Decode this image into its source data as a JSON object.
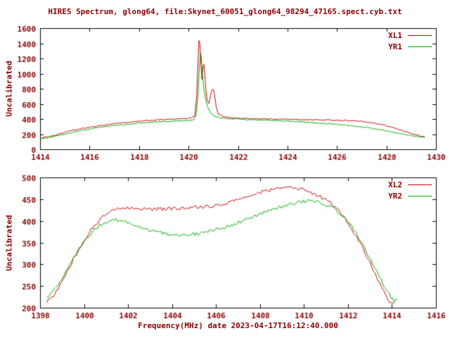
{
  "chart_data": {
    "type": "line",
    "title": "HIRES Spectrum, glong64, file:Skynet_60051_glong64_98294_47165.spect.cyb.txt",
    "xlabel": "Frequency(MHz) date 2023-04-17T16:12:40.000",
    "grid": false,
    "legend_position": "top-right",
    "background": "#ffffff",
    "axis_color": "#000000",
    "text_color": "#8b0000",
    "plots": [
      {
        "ylabel": "Uncalibrated",
        "xlim": [
          1414,
          1430
        ],
        "xtick_step": 2,
        "ylim": [
          0,
          1600
        ],
        "ytick_step": 200,
        "series": [
          {
            "name": "XL1",
            "color": "#cc0000",
            "noise": 6,
            "points": [
              [
                1414.05,
                150
              ],
              [
                1414.3,
                165
              ],
              [
                1414.6,
                185
              ],
              [
                1415.0,
                225
              ],
              [
                1415.4,
                255
              ],
              [
                1415.8,
                280
              ],
              [
                1416.2,
                300
              ],
              [
                1416.6,
                320
              ],
              [
                1417.0,
                340
              ],
              [
                1417.4,
                352
              ],
              [
                1417.8,
                362
              ],
              [
                1418.2,
                375
              ],
              [
                1418.6,
                385
              ],
              [
                1419.0,
                393
              ],
              [
                1419.4,
                398
              ],
              [
                1419.8,
                403
              ],
              [
                1420.1,
                412
              ],
              [
                1420.25,
                440
              ],
              [
                1420.33,
                700
              ],
              [
                1420.38,
                1150
              ],
              [
                1420.42,
                1440
              ],
              [
                1420.46,
                1400
              ],
              [
                1420.5,
                1120
              ],
              [
                1420.54,
                920
              ],
              [
                1420.58,
                1080
              ],
              [
                1420.62,
                1120
              ],
              [
                1420.66,
                980
              ],
              [
                1420.7,
                800
              ],
              [
                1420.76,
                640
              ],
              [
                1420.82,
                600
              ],
              [
                1420.88,
                700
              ],
              [
                1420.94,
                780
              ],
              [
                1421.0,
                790
              ],
              [
                1421.06,
                700
              ],
              [
                1421.12,
                560
              ],
              [
                1421.2,
                470
              ],
              [
                1421.35,
                440
              ],
              [
                1421.5,
                425
              ],
              [
                1421.8,
                415
              ],
              [
                1422.2,
                408
              ],
              [
                1422.6,
                405
              ],
              [
                1423.0,
                402
              ],
              [
                1423.4,
                400
              ],
              [
                1423.8,
                398
              ],
              [
                1424.2,
                395
              ],
              [
                1424.6,
                392
              ],
              [
                1425.0,
                390
              ],
              [
                1425.4,
                388
              ],
              [
                1425.8,
                385
              ],
              [
                1426.2,
                382
              ],
              [
                1426.6,
                378
              ],
              [
                1427.0,
                368
              ],
              [
                1427.4,
                350
              ],
              [
                1427.8,
                325
              ],
              [
                1428.2,
                292
              ],
              [
                1428.6,
                252
              ],
              [
                1429.0,
                210
              ],
              [
                1429.3,
                180
              ],
              [
                1429.55,
                160
              ]
            ]
          },
          {
            "name": "YR1",
            "color": "#00aa00",
            "noise": 6,
            "points": [
              [
                1414.05,
                140
              ],
              [
                1414.4,
                160
              ],
              [
                1414.8,
                185
              ],
              [
                1415.2,
                215
              ],
              [
                1415.6,
                245
              ],
              [
                1416.0,
                268
              ],
              [
                1416.4,
                288
              ],
              [
                1416.8,
                305
              ],
              [
                1417.2,
                320
              ],
              [
                1417.6,
                333
              ],
              [
                1418.0,
                345
              ],
              [
                1418.4,
                355
              ],
              [
                1418.8,
                362
              ],
              [
                1419.2,
                368
              ],
              [
                1419.6,
                374
              ],
              [
                1420.0,
                380
              ],
              [
                1420.2,
                392
              ],
              [
                1420.3,
                450
              ],
              [
                1420.38,
                700
              ],
              [
                1420.44,
                1100
              ],
              [
                1420.48,
                1280
              ],
              [
                1420.52,
                1230
              ],
              [
                1420.56,
                1000
              ],
              [
                1420.62,
                800
              ],
              [
                1420.68,
                680
              ],
              [
                1420.75,
                580
              ],
              [
                1420.85,
                500
              ],
              [
                1420.95,
                455
              ],
              [
                1421.1,
                430
              ],
              [
                1421.3,
                415
              ],
              [
                1421.6,
                405
              ],
              [
                1422.0,
                398
              ],
              [
                1422.4,
                392
              ],
              [
                1422.8,
                388
              ],
              [
                1423.2,
                383
              ],
              [
                1423.6,
                378
              ],
              [
                1424.0,
                372
              ],
              [
                1424.4,
                365
              ],
              [
                1424.8,
                357
              ],
              [
                1425.2,
                348
              ],
              [
                1425.6,
                338
              ],
              [
                1426.0,
                328
              ],
              [
                1426.4,
                316
              ],
              [
                1426.8,
                302
              ],
              [
                1427.2,
                286
              ],
              [
                1427.6,
                266
              ],
              [
                1428.0,
                243
              ],
              [
                1428.4,
                218
              ],
              [
                1428.8,
                195
              ],
              [
                1429.2,
                170
              ],
              [
                1429.55,
                152
              ]
            ]
          }
        ]
      },
      {
        "ylabel": "Uncalibrated",
        "xlim": [
          1398,
          1416
        ],
        "xtick_step": 2,
        "ylim": [
          200,
          500
        ],
        "ytick_step": 50,
        "series": [
          {
            "name": "XL2",
            "color": "#cc0000",
            "noise": 4,
            "points": [
              [
                1398.3,
                213
              ],
              [
                1398.6,
                228
              ],
              [
                1398.9,
                252
              ],
              [
                1399.2,
                280
              ],
              [
                1399.5,
                310
              ],
              [
                1399.8,
                338
              ],
              [
                1400.1,
                362
              ],
              [
                1400.4,
                385
              ],
              [
                1400.7,
                402
              ],
              [
                1401.0,
                415
              ],
              [
                1401.3,
                424
              ],
              [
                1401.6,
                429
              ],
              [
                1401.9,
                431
              ],
              [
                1402.2,
                430
              ],
              [
                1402.5,
                429
              ],
              [
                1402.8,
                428
              ],
              [
                1403.1,
                427
              ],
              [
                1403.5,
                427
              ],
              [
                1403.9,
                428
              ],
              [
                1404.3,
                429
              ],
              [
                1404.7,
                430
              ],
              [
                1405.1,
                431
              ],
              [
                1405.5,
                432
              ],
              [
                1405.9,
                434
              ],
              [
                1406.3,
                438
              ],
              [
                1406.7,
                444
              ],
              [
                1407.1,
                451
              ],
              [
                1407.5,
                458
              ],
              [
                1407.9,
                464
              ],
              [
                1408.3,
                469
              ],
              [
                1408.7,
                473
              ],
              [
                1409.1,
                476
              ],
              [
                1409.4,
                477
              ],
              [
                1409.7,
                475
              ],
              [
                1410.0,
                471
              ],
              [
                1410.3,
                466
              ],
              [
                1410.6,
                459
              ],
              [
                1410.9,
                452
              ],
              [
                1411.2,
                442
              ],
              [
                1411.5,
                428
              ],
              [
                1411.8,
                410
              ],
              [
                1412.1,
                388
              ],
              [
                1412.4,
                362
              ],
              [
                1412.7,
                334
              ],
              [
                1413.0,
                304
              ],
              [
                1413.3,
                272
              ],
              [
                1413.6,
                241
              ],
              [
                1413.9,
                213
              ],
              [
                1414.1,
                205
              ]
            ]
          },
          {
            "name": "YR2",
            "color": "#00aa00",
            "noise": 4,
            "points": [
              [
                1398.3,
                222
              ],
              [
                1398.6,
                238
              ],
              [
                1398.9,
                260
              ],
              [
                1399.2,
                286
              ],
              [
                1399.5,
                312
              ],
              [
                1399.8,
                336
              ],
              [
                1400.1,
                358
              ],
              [
                1400.4,
                376
              ],
              [
                1400.7,
                390
              ],
              [
                1401.0,
                398
              ],
              [
                1401.3,
                402
              ],
              [
                1401.6,
                401
              ],
              [
                1401.9,
                397
              ],
              [
                1402.2,
                392
              ],
              [
                1402.5,
                386
              ],
              [
                1402.8,
                381
              ],
              [
                1403.1,
                377
              ],
              [
                1403.5,
                372
              ],
              [
                1403.9,
                369
              ],
              [
                1404.3,
                368
              ],
              [
                1404.7,
                368
              ],
              [
                1405.1,
                370
              ],
              [
                1405.5,
                373
              ],
              [
                1405.9,
                378
              ],
              [
                1406.3,
                384
              ],
              [
                1406.7,
                391
              ],
              [
                1407.1,
                398
              ],
              [
                1407.5,
                406
              ],
              [
                1407.9,
                414
              ],
              [
                1408.3,
                422
              ],
              [
                1408.7,
                429
              ],
              [
                1409.1,
                435
              ],
              [
                1409.5,
                440
              ],
              [
                1409.9,
                444
              ],
              [
                1410.2,
                446
              ],
              [
                1410.5,
                445
              ],
              [
                1410.8,
                442
              ],
              [
                1411.1,
                436
              ],
              [
                1411.4,
                427
              ],
              [
                1411.7,
                414
              ],
              [
                1412.0,
                398
              ],
              [
                1412.3,
                378
              ],
              [
                1412.6,
                352
              ],
              [
                1412.9,
                324
              ],
              [
                1413.2,
                294
              ],
              [
                1413.5,
                264
              ],
              [
                1413.8,
                236
              ],
              [
                1414.1,
                215
              ],
              [
                1414.25,
                218
              ]
            ]
          }
        ]
      }
    ]
  }
}
